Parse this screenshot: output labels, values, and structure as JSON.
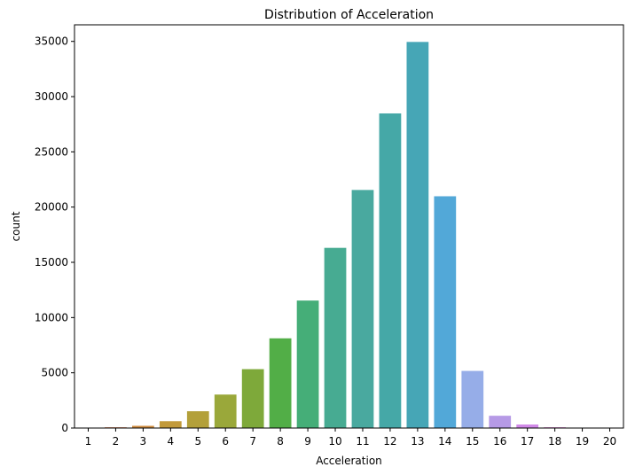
{
  "chart_data": {
    "type": "bar",
    "title": "Distribution of Acceleration",
    "xlabel": "Acceleration",
    "ylabel": "count",
    "categories": [
      "1",
      "2",
      "3",
      "4",
      "5",
      "6",
      "7",
      "8",
      "9",
      "10",
      "11",
      "12",
      "13",
      "14",
      "15",
      "16",
      "17",
      "18",
      "19",
      "20"
    ],
    "values": [
      40,
      70,
      200,
      620,
      1520,
      3030,
      5330,
      8120,
      11540,
      16310,
      21550,
      28480,
      34950,
      20980,
      5170,
      1110,
      320,
      70,
      10,
      5
    ],
    "ylim": [
      0,
      36500
    ],
    "yticks": [
      0,
      5000,
      10000,
      15000,
      20000,
      25000,
      30000,
      35000
    ],
    "grid": false,
    "colors": [
      "#e8818b",
      "#d97f5a",
      "#cf8c3f",
      "#c29a3b",
      "#b3a03a",
      "#9aa83a",
      "#7ea93a",
      "#52ae47",
      "#45ae78",
      "#47ab92",
      "#49a99f",
      "#45a8a7",
      "#46a6b6",
      "#52a8d8",
      "#96ade8",
      "#b69ae6",
      "#d189e8",
      "#e27ed6",
      "#ec79b6",
      "#ef7a99"
    ]
  }
}
